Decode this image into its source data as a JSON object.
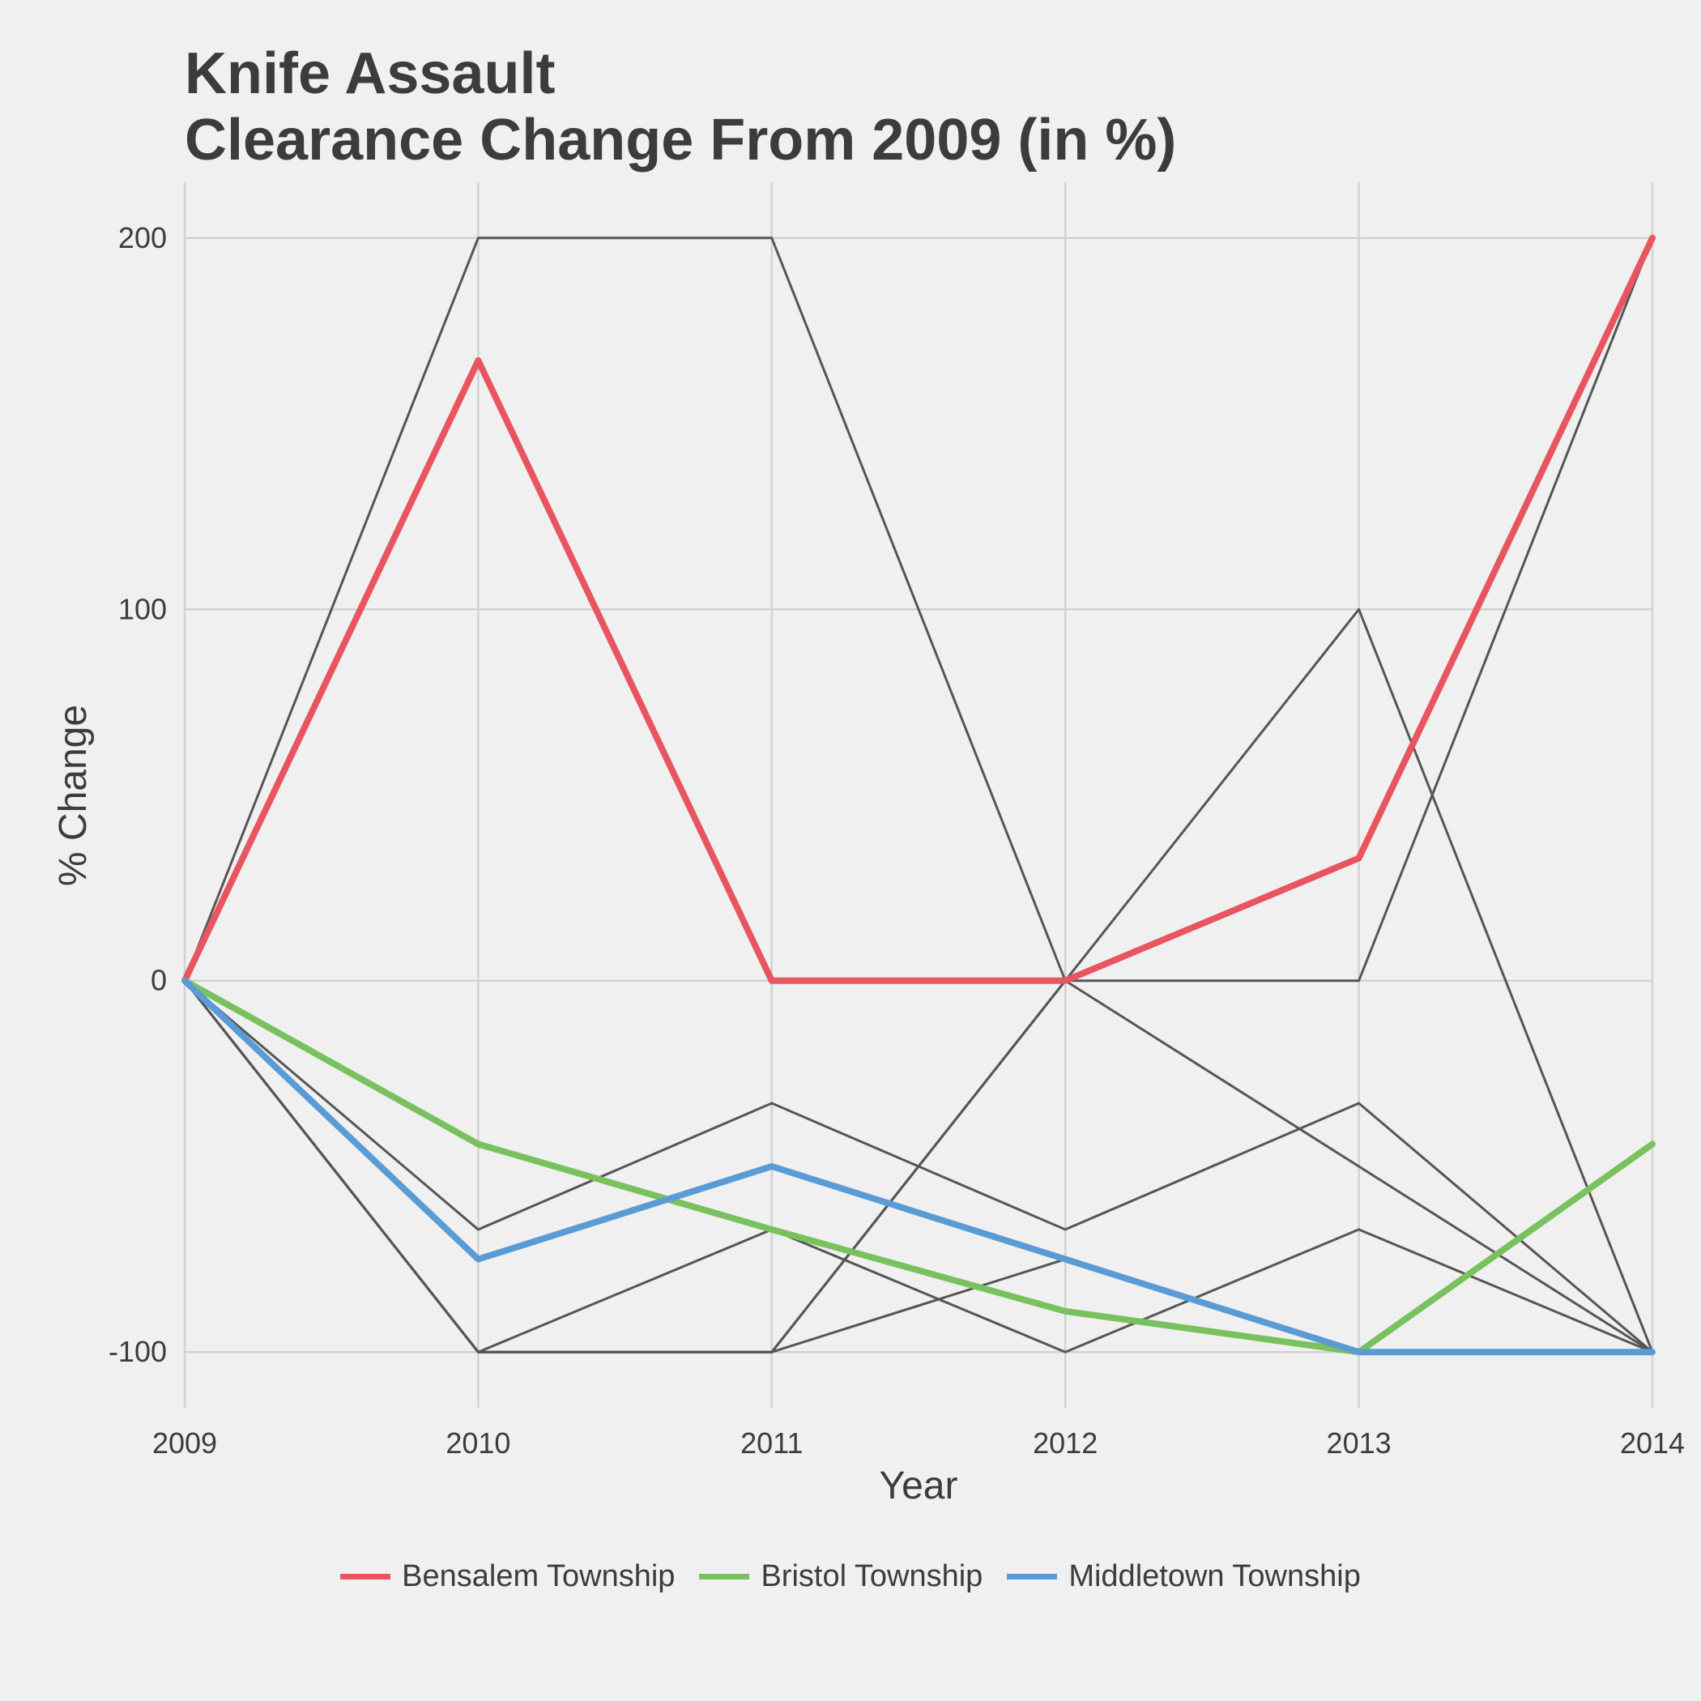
{
  "chart_data": {
    "type": "line",
    "title_line1": "Knife Assault",
    "title_line2": "Clearance Change From 2009 (in %)",
    "xlabel": "Year",
    "ylabel": "% Change",
    "x": [
      2009,
      2010,
      2011,
      2012,
      2013,
      2014
    ],
    "x_tick_labels": [
      "2009",
      "2010",
      "2011",
      "2012",
      "2013",
      "2014"
    ],
    "y_ticks": [
      -100,
      0,
      100,
      200
    ],
    "y_tick_labels": [
      "-100",
      "0",
      "100",
      "200"
    ],
    "ylim": [
      -115,
      215
    ],
    "grid": true,
    "legend_position": "bottom",
    "background_series_color": "#555555",
    "background_series": [
      {
        "values": [
          0,
          200,
          200,
          0,
          0,
          200
        ]
      },
      {
        "values": [
          0,
          -67,
          -33,
          -67,
          -33,
          -100
        ]
      },
      {
        "values": [
          0,
          -100,
          -67,
          -100,
          -67,
          -100
        ]
      },
      {
        "values": [
          0,
          -100,
          -100,
          0,
          -50,
          -100
        ]
      },
      {
        "values": [
          0,
          -100,
          -100,
          -75,
          -100,
          -100
        ]
      },
      {
        "values": [
          0,
          -100,
          -100,
          0,
          100,
          -100
        ]
      }
    ],
    "series": [
      {
        "name": "Bensalem Township",
        "color": "#e8555f",
        "values": [
          0,
          167,
          0,
          0,
          33,
          200
        ]
      },
      {
        "name": "Bristol Township",
        "color": "#78c15e",
        "values": [
          0,
          -44,
          -67,
          -89,
          -100,
          -44
        ]
      },
      {
        "name": "Middletown Township",
        "color": "#5b9bd5",
        "values": [
          0,
          -75,
          -50,
          -75,
          -100,
          -100
        ]
      }
    ]
  }
}
